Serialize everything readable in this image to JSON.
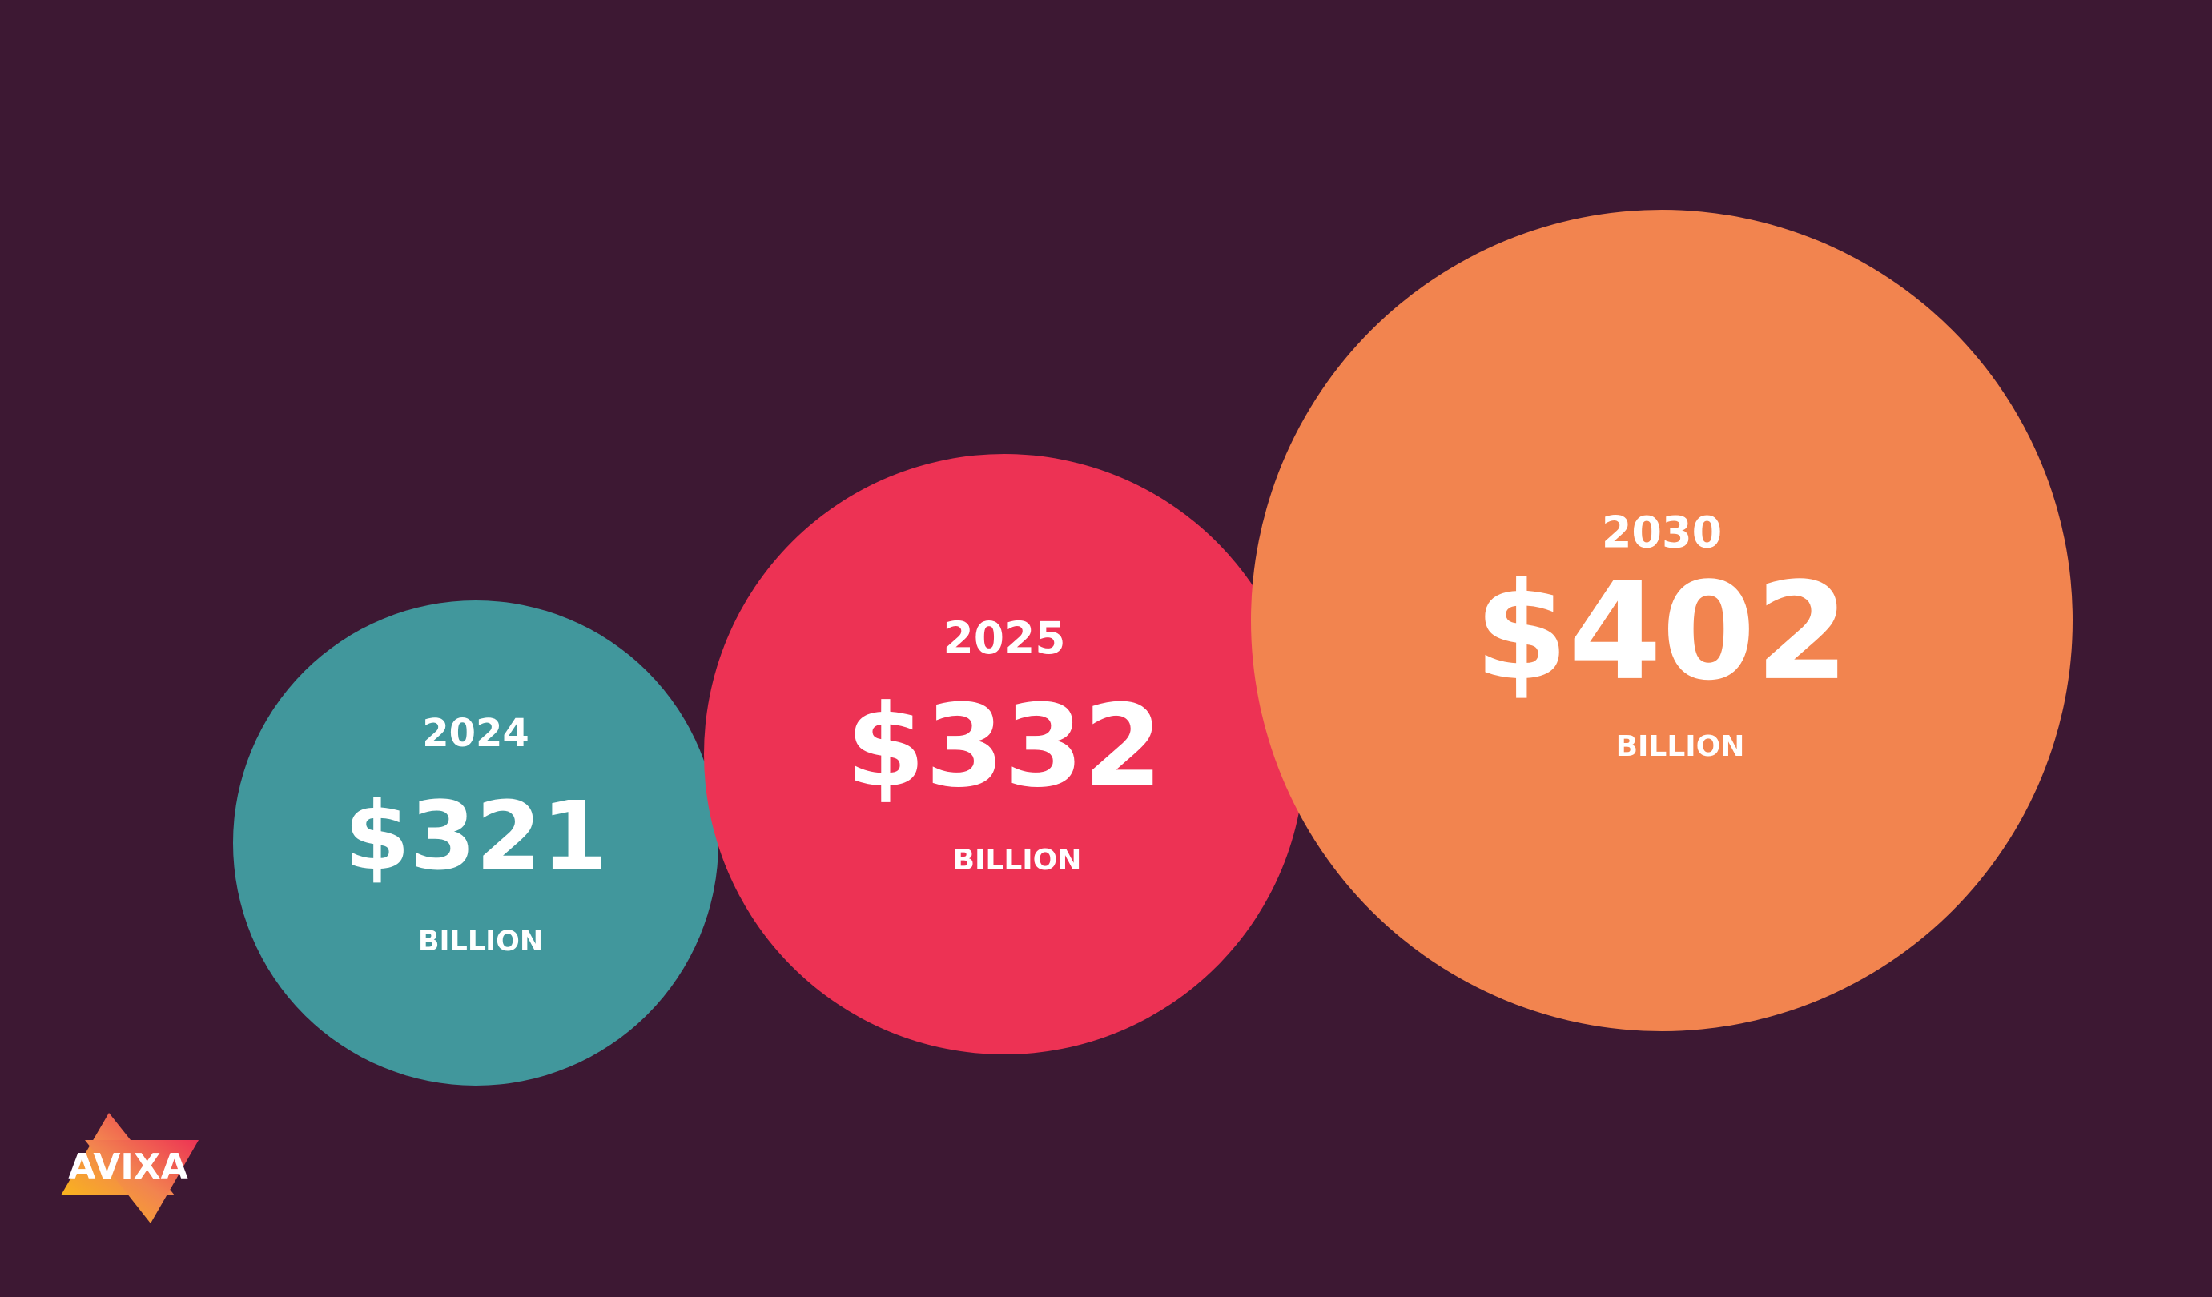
{
  "logo": {
    "text": "AVIXA"
  },
  "items": [
    {
      "year": "2024",
      "amount": "$321",
      "unit": "BILLION"
    },
    {
      "year": "2025",
      "amount": "$332",
      "unit": "BILLION"
    },
    {
      "year": "2030",
      "amount": "$402",
      "unit": "BILLION"
    }
  ]
}
